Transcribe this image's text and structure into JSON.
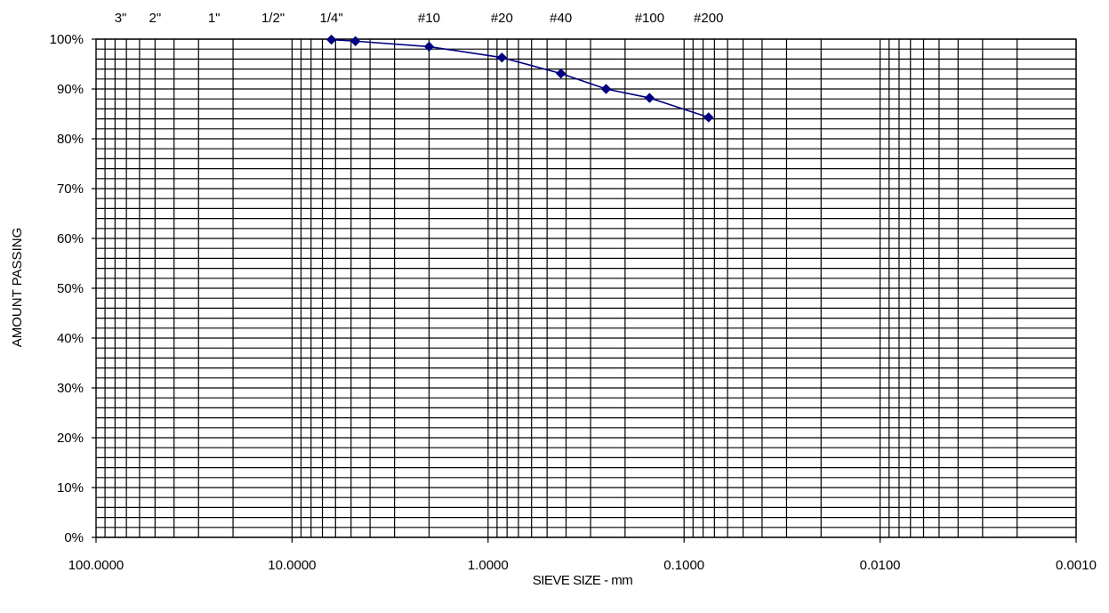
{
  "chart_data": {
    "type": "line",
    "xlabel": "SIEVE SIZE - mm",
    "ylabel": "AMOUNT PASSING",
    "x_scale": "log",
    "x_reversed": true,
    "xlim": [
      100,
      0.001
    ],
    "ylim": [
      0,
      100
    ],
    "grid": true,
    "x_tick_labels": [
      "100.0000",
      "10.0000",
      "1.0000",
      "0.1000",
      "0.0100",
      "0.0010"
    ],
    "x_tick_values": [
      100,
      10,
      1,
      0.1,
      0.01,
      0.001
    ],
    "y_tick_labels": [
      "0%",
      "10%",
      "20%",
      "30%",
      "40%",
      "50%",
      "60%",
      "70%",
      "80%",
      "90%",
      "100%"
    ],
    "y_tick_values": [
      0,
      10,
      20,
      30,
      40,
      50,
      60,
      70,
      80,
      90,
      100
    ],
    "sieve_labels": [
      {
        "label": "3\"",
        "size": 75
      },
      {
        "label": "2\"",
        "size": 50
      },
      {
        "label": "1\"",
        "size": 25
      },
      {
        "label": "1/2\"",
        "size": 12.5
      },
      {
        "label": "1/4\"",
        "size": 6.3
      },
      {
        "label": "#10",
        "size": 2.0
      },
      {
        "label": "#20",
        "size": 0.85
      },
      {
        "label": "#40",
        "size": 0.425
      },
      {
        "label": "#100",
        "size": 0.15
      },
      {
        "label": "#200",
        "size": 0.075
      }
    ],
    "series": [
      {
        "color": "#000080",
        "marker": "diamond",
        "x": [
          6.3,
          4.75,
          2.0,
          0.85,
          0.425,
          0.25,
          0.15,
          0.075
        ],
        "y": [
          99.9,
          99.6,
          98.5,
          96.3,
          93.1,
          90.0,
          88.2,
          84.3
        ]
      }
    ]
  }
}
